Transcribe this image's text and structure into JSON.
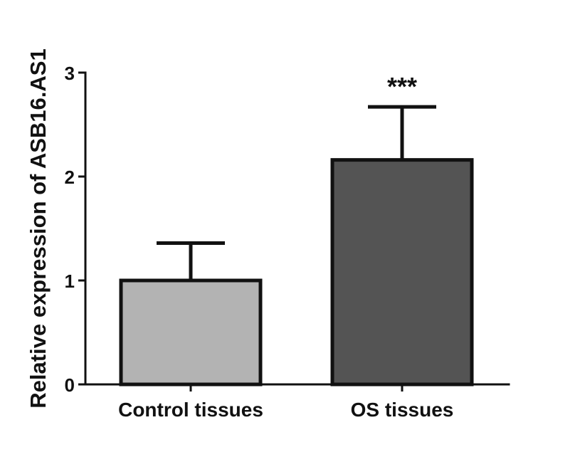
{
  "chart_data": {
    "type": "bar",
    "categories": [
      "Control tissues",
      "OS tissues"
    ],
    "values": [
      1.0,
      2.16
    ],
    "errors": [
      0.36,
      0.51
    ],
    "annotations": [
      {
        "category": "OS tissues",
        "text": "***"
      }
    ],
    "xlabel": "",
    "ylabel": "Relative expression of ASB16.AS1",
    "ylim": [
      0,
      3
    ],
    "yticks": [
      "0",
      "1",
      "2",
      "3"
    ],
    "grid": false,
    "legend": "none",
    "colors": {
      "Control tissues": "#b3b3b3",
      "OS tissues": "#545454",
      "stroke": "#111111"
    }
  }
}
